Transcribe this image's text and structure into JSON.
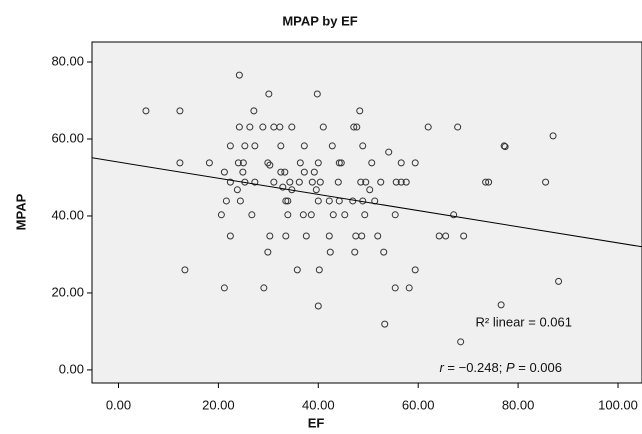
{
  "chart_data": {
    "type": "scatter",
    "title": "MPAP by EF",
    "xlabel": "EF",
    "ylabel": "MPAP",
    "xlim": [
      -5.3,
      104.8
    ],
    "ylim": [
      -3.4,
      85.2
    ],
    "xticks": [
      {
        "value": 0,
        "label": "0.00"
      },
      {
        "value": 20,
        "label": "20.00"
      },
      {
        "value": 40,
        "label": "40.00"
      },
      {
        "value": 60,
        "label": "60.00"
      },
      {
        "value": 80,
        "label": "80.00"
      },
      {
        "value": 100,
        "label": "100.00"
      }
    ],
    "yticks": [
      {
        "value": 0,
        "label": "0.00"
      },
      {
        "value": 20,
        "label": "20.00"
      },
      {
        "value": 40,
        "label": "40.00"
      },
      {
        "value": 60,
        "label": "60.00"
      },
      {
        "value": 80,
        "label": "80.00"
      }
    ],
    "color": "#333333",
    "x": [
      5.5,
      12.3,
      24.2,
      30.1,
      39.8,
      27.1,
      48.3,
      24.2,
      26.3,
      28.9,
      31.1,
      32.3,
      34.7,
      41.0,
      47.1,
      47.7,
      62.0,
      87.0,
      22.4,
      25.3,
      27.3,
      32.5,
      37.2,
      42.8,
      48.9,
      54.1,
      77.2,
      77.4,
      12.3,
      18.2,
      24.0,
      25.0,
      29.9,
      30.3,
      36.4,
      40.0,
      44.6,
      50.7,
      56.6,
      59.4,
      67.9,
      21.2,
      24.9,
      32.5,
      33.3,
      37.2,
      39.2,
      44.2,
      22.4,
      25.3,
      27.3,
      31.1,
      34.3,
      36.2,
      38.8,
      40.4,
      44.0,
      48.5,
      49.5,
      52.5,
      55.6,
      56.6,
      57.6,
      73.5,
      74.1,
      85.5,
      23.8,
      32.9,
      34.7,
      39.6,
      50.3,
      21.6,
      24.4,
      33.5,
      33.9,
      40.0,
      42.2,
      44.2,
      46.9,
      48.9,
      51.3,
      20.6,
      26.7,
      33.9,
      37.0,
      43.0,
      45.3,
      49.3,
      55.4,
      67.1,
      38.6,
      22.4,
      30.3,
      33.5,
      37.6,
      42.2,
      47.5,
      48.7,
      51.9,
      65.5,
      69.1,
      29.9,
      42.4,
      47.3,
      53.1,
      64.2,
      35.8,
      40.2,
      13.3,
      59.4,
      21.2,
      29.1,
      55.4,
      58.2,
      40.0,
      76.6,
      88.1,
      53.3,
      68.5
    ],
    "values": [
      67.3,
      67.3,
      76.6,
      71.7,
      71.7,
      67.3,
      67.3,
      63.1,
      63.1,
      63.1,
      63.1,
      63.1,
      63.1,
      63.1,
      63.1,
      63.1,
      63.1,
      60.8,
      58.2,
      58.2,
      58.2,
      58.2,
      58.2,
      58.2,
      58.2,
      56.6,
      58.2,
      58.0,
      53.8,
      53.8,
      53.8,
      53.8,
      53.8,
      53.2,
      53.8,
      53.8,
      53.8,
      53.8,
      53.8,
      53.8,
      63.1,
      51.4,
      51.4,
      51.4,
      51.4,
      51.4,
      51.4,
      53.8,
      48.8,
      48.8,
      48.8,
      48.8,
      48.8,
      48.8,
      48.8,
      48.8,
      48.8,
      48.8,
      48.8,
      48.8,
      48.8,
      48.8,
      48.8,
      48.8,
      48.8,
      48.8,
      46.8,
      47.5,
      46.8,
      46.8,
      46.8,
      43.9,
      43.9,
      43.9,
      43.9,
      43.9,
      43.9,
      43.9,
      43.9,
      43.9,
      43.9,
      40.3,
      40.3,
      40.3,
      40.3,
      40.3,
      40.3,
      40.3,
      40.3,
      40.3,
      40.3,
      34.8,
      34.8,
      34.8,
      34.8,
      34.8,
      34.8,
      34.8,
      34.8,
      34.8,
      34.8,
      30.6,
      30.6,
      30.6,
      30.6,
      34.8,
      26.0,
      26.0,
      26.0,
      26.0,
      21.3,
      21.3,
      21.3,
      21.3,
      16.6,
      16.9,
      23.0,
      11.9,
      7.3
    ],
    "fit": {
      "intercept": 54.0,
      "slope": -0.21
    },
    "annotations": {
      "r_squared": "R² linear = 0.061",
      "stats": [
        "r",
        " = −0.248; ",
        "P",
        " = 0.006"
      ]
    }
  }
}
